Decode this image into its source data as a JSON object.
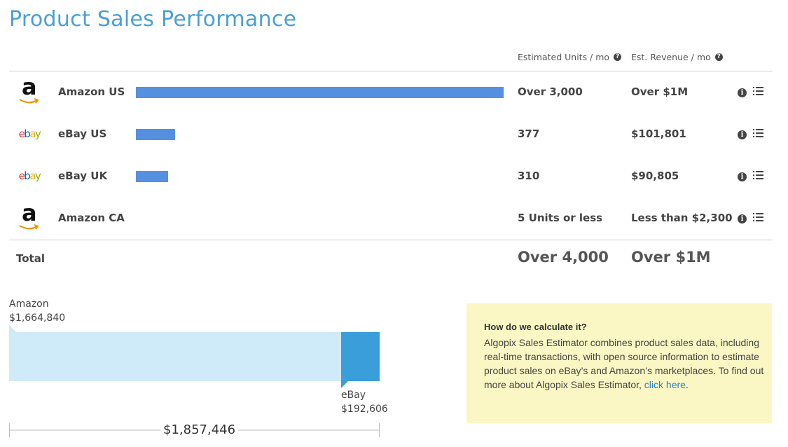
{
  "title": "Product Sales Performance",
  "columns": {
    "units": "Estimated Units / mo",
    "revenue": "Est. Revenue / mo"
  },
  "rows": [
    {
      "marketplace": "Amazon US",
      "logo": "amazon-logo",
      "units": "Over 3,000",
      "revenue": "Over $1M",
      "bar_fraction": 1.0
    },
    {
      "marketplace": "eBay US",
      "logo": "ebay-logo",
      "units": "377",
      "revenue": "$101,801",
      "bar_fraction": 0.107
    },
    {
      "marketplace": "eBay UK",
      "logo": "ebay-logo",
      "units": "310",
      "revenue": "$90,805",
      "bar_fraction": 0.088
    },
    {
      "marketplace": "Amazon CA",
      "logo": "amazon-logo",
      "units": "5 Units or less",
      "revenue": "Less than $2,300",
      "bar_fraction": 0
    }
  ],
  "total": {
    "label": "Total",
    "units": "Over 4,000",
    "revenue": "Over $1M"
  },
  "split": {
    "amazon_label": "Amazon",
    "amazon_value": "$1,664,840",
    "ebay_label": "eBay",
    "ebay_value": "$192,606",
    "total": "$1,857,446",
    "amazon_fraction": 0.8963
  },
  "info_box": {
    "title": "How do we calculate it?",
    "body": "Algopix Sales Estimator combines product sales data, including real-time transactions, with open source information to estimate product sales on eBay’s and Amazon’s marketplaces. To find out more about Algopix Sales Estimator,",
    "link_text": "click here",
    "link_suffix": "."
  },
  "colors": {
    "title": "#4a9fd6",
    "bar": "#5590e0",
    "amazon_segment": "#cfeaf8",
    "ebay_segment": "#3a9edb",
    "info_box_bg": "#fbf7c5",
    "link": "#2a7fc5"
  },
  "icons": {
    "help": "question-circle-icon",
    "info": "info-circle-icon",
    "details": "list-icon"
  }
}
